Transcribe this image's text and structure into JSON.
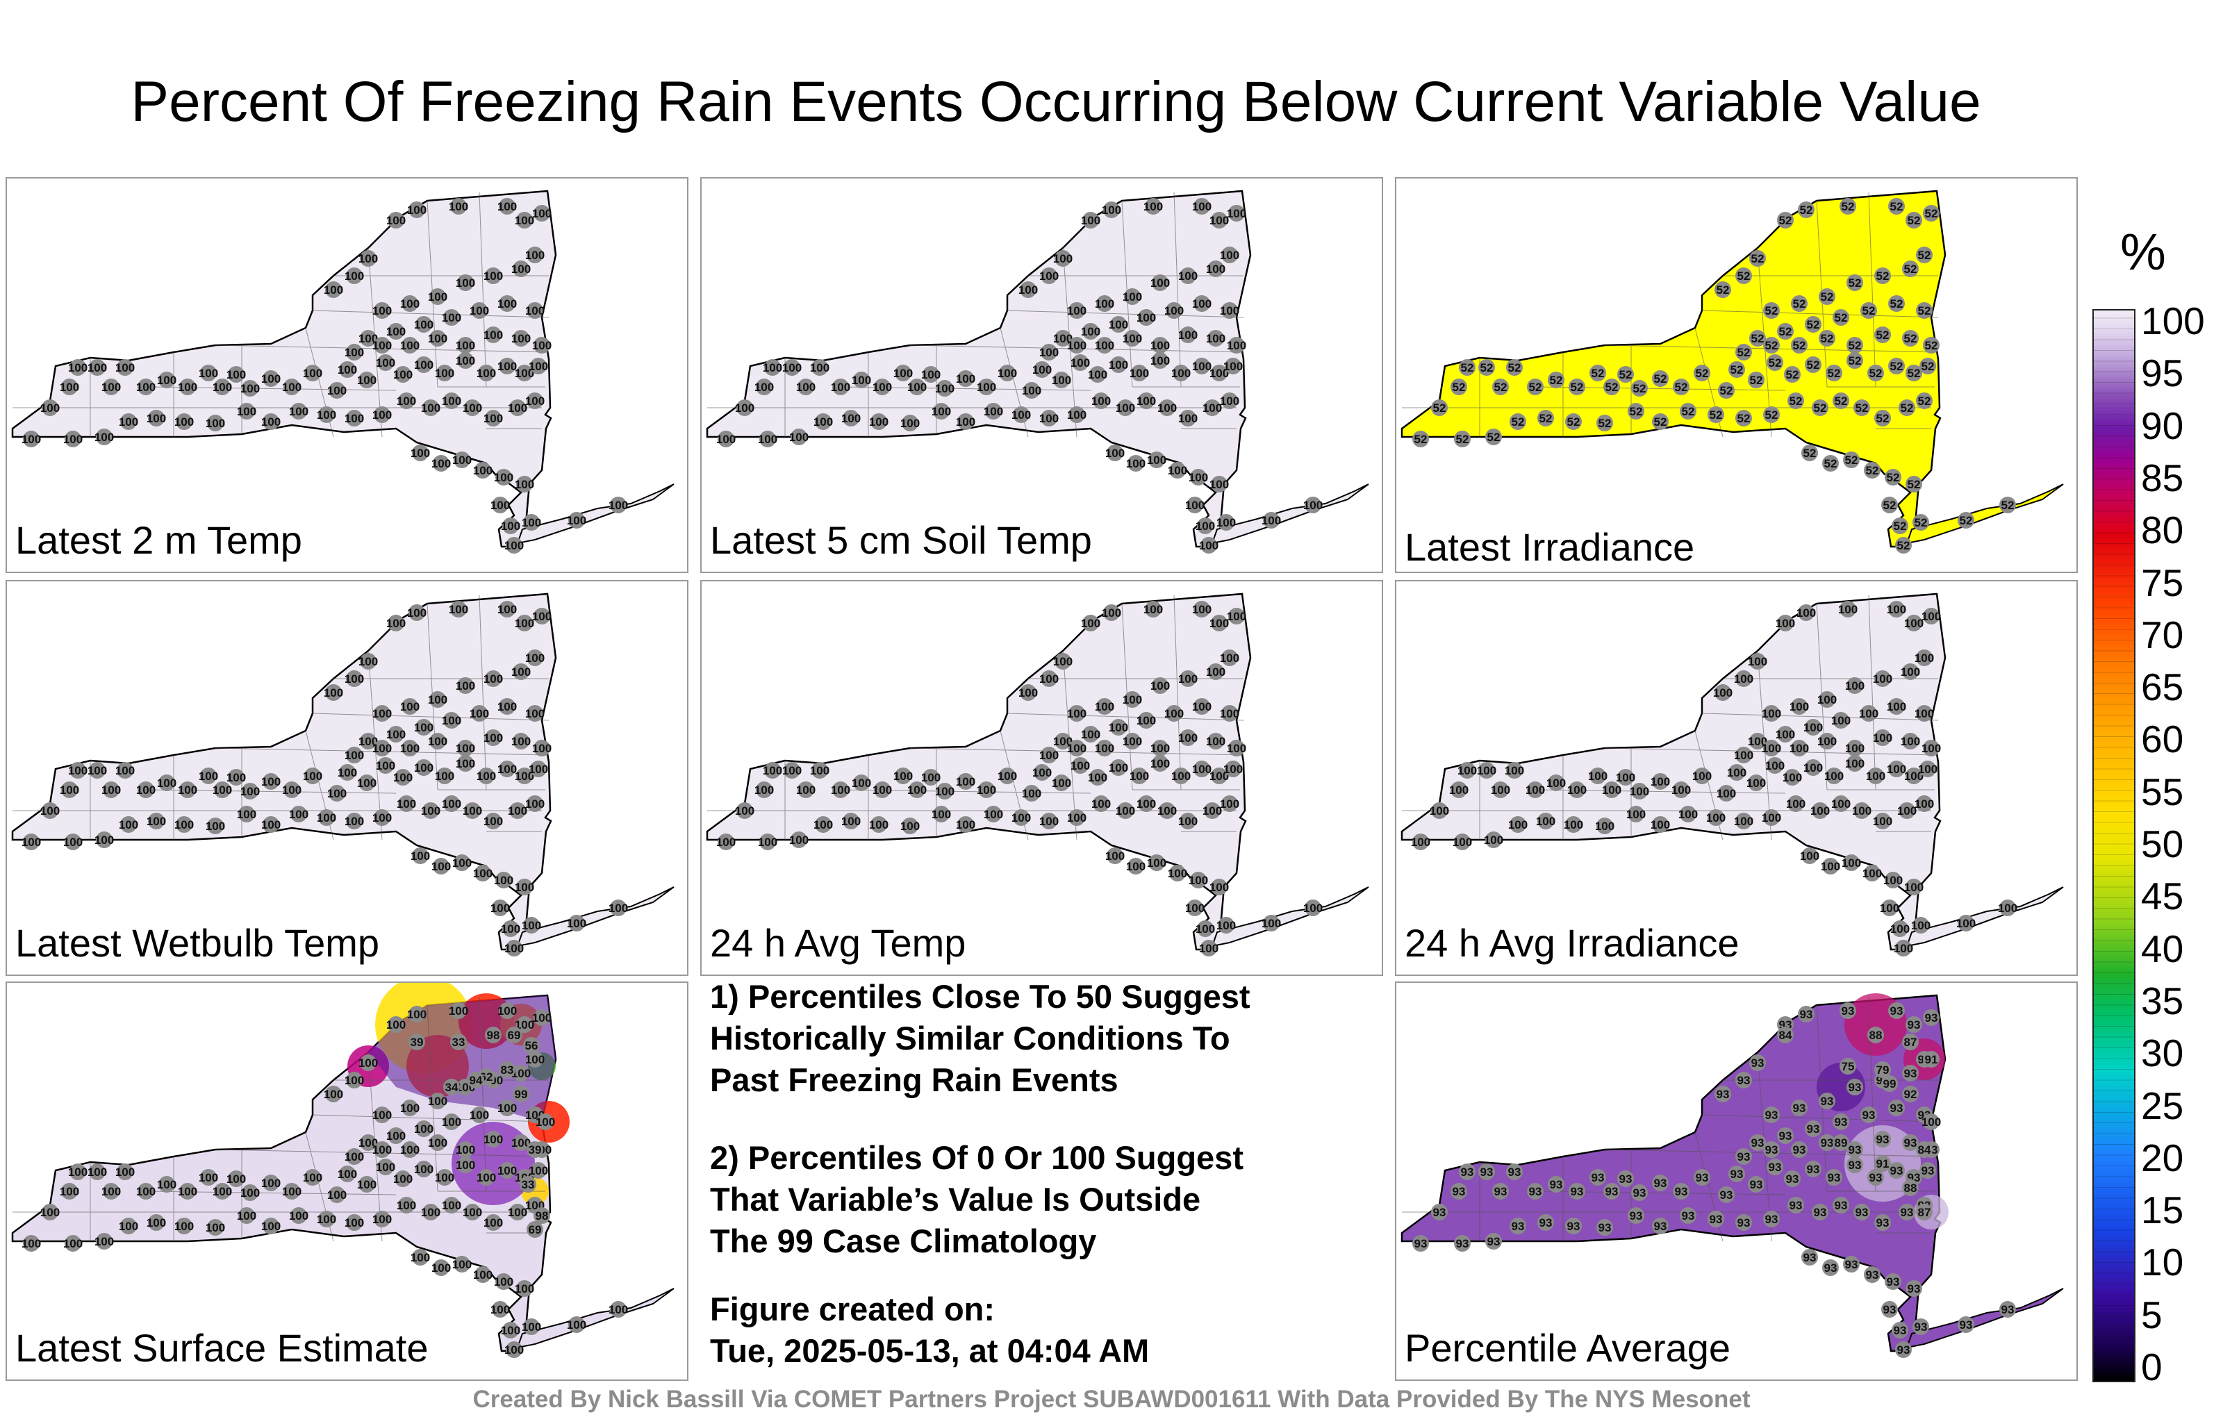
{
  "title": "Percent Of Freezing Rain Events Occurring Below Current Variable Value",
  "panels": [
    {
      "label": "Latest 2 m Temp",
      "value": "100",
      "fill": "#efe9f3"
    },
    {
      "label": "Latest 5 cm Soil Temp",
      "value": "100",
      "fill": "#efe9f3"
    },
    {
      "label": "Latest Irradiance",
      "value": "52",
      "fill": "#ffff00"
    },
    {
      "label": "Latest Wetbulb Temp",
      "value": "100",
      "fill": "#efe9f3"
    },
    {
      "label": "24 h Avg Temp",
      "value": "100",
      "fill": "#efe9f3"
    },
    {
      "label": "24 h Avg Irradiance",
      "value": "100",
      "fill": "#efe9f3"
    },
    {
      "label": "Latest Surface Estimate",
      "value": "100",
      "fill": "#e6dcef"
    },
    {
      "label": "Percentile Average",
      "value": "93",
      "fill": "#8a4fb8"
    }
  ],
  "surface_estimate_hot_values": [
    "39",
    "33",
    "98",
    "69",
    "56",
    "83",
    "62",
    "94",
    "34",
    "99",
    "100"
  ],
  "average_hot_values": [
    "84",
    "88",
    "87",
    "91",
    "75",
    "79",
    "99",
    "92",
    "100",
    "89"
  ],
  "notes": {
    "note1": "1) Percentiles Close To 50 Suggest\nHistorically Similar Conditions To\nPast Freezing Rain Events",
    "note2": "2) Percentiles Of 0 Or 100 Suggest\nThat Variable’s Value Is Outside\nThe 99 Case Climatology",
    "created_label": "Figure created on:",
    "created_value": "Tue, 2025-05-13, at 04:04 AM"
  },
  "credit": "Created By Nick Bassill Via COMET Partners Project SUBAWD001611 With Data Provided By The NYS Mesonet",
  "colorbar": {
    "unit": "%",
    "ticks": [
      "100",
      "95",
      "90",
      "85",
      "80",
      "75",
      "70",
      "65",
      "60",
      "55",
      "50",
      "45",
      "40",
      "35",
      "30",
      "25",
      "20",
      "15",
      "10",
      "5",
      "0"
    ]
  }
}
